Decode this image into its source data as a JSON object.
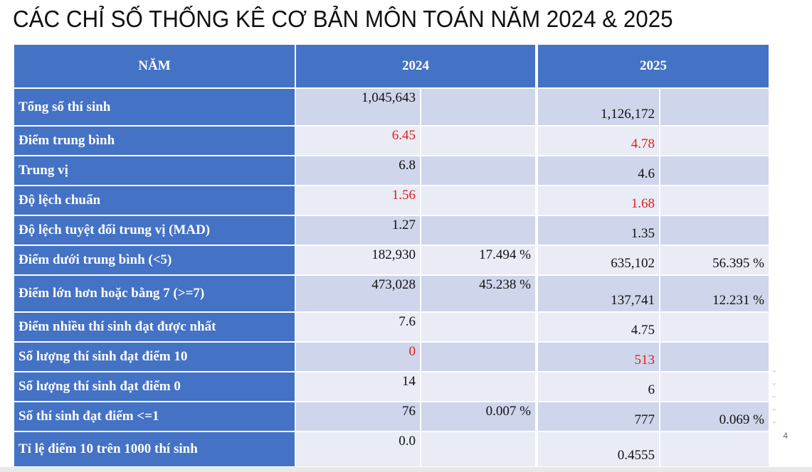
{
  "title": "CÁC CHỈ SỐ THỐNG KÊ CƠ BẢN MÔN TOÁN NĂM 2024 & 2025",
  "header": {
    "col0": "NĂM",
    "col1": "2024",
    "col2": "2025"
  },
  "rows": [
    {
      "label": "Tổng số thí sinh",
      "v2024": "1,045,643",
      "p2024": "",
      "v2025": "1,126,172",
      "p2025": "",
      "red": false
    },
    {
      "label": "Điểm trung bình",
      "v2024": "6.45",
      "p2024": "",
      "v2025": "4.78",
      "p2025": "",
      "red": true
    },
    {
      "label": "Trung vị",
      "v2024": "6.8",
      "p2024": "",
      "v2025": "4.6",
      "p2025": "",
      "red": false
    },
    {
      "label": "Độ lệch chuẩn",
      "v2024": "1.56",
      "p2024": "",
      "v2025": "1.68",
      "p2025": "",
      "red": true
    },
    {
      "label": "Độ lệch tuyệt đối trung vị (MAD)",
      "v2024": "1.27",
      "p2024": "",
      "v2025": "1.35",
      "p2025": "",
      "red": false
    },
    {
      "label": "Điểm dưới trung bình (<5)",
      "v2024": "182,930",
      "p2024": "17.494 %",
      "v2025": "635,102",
      "p2025": "56.395 %",
      "red": false
    },
    {
      "label": "Điểm lớn hơn hoặc bằng 7 (>=7)",
      "v2024": "473,028",
      "p2024": "45.238 %",
      "v2025": "137,741",
      "p2025": "12.231 %",
      "red": false
    },
    {
      "label": "Điểm nhiều thí sinh đạt được nhất",
      "v2024": "7.6",
      "p2024": "",
      "v2025": "4.75",
      "p2025": "",
      "red": false
    },
    {
      "label": "Số lượng thí sinh đạt điểm 10",
      "v2024": "0",
      "p2024": "",
      "v2025": "513",
      "p2025": "",
      "red": true
    },
    {
      "label": "Số lượng thí sinh đạt điểm 0",
      "v2024": "14",
      "p2024": "",
      "v2025": "6",
      "p2025": "",
      "red": false
    },
    {
      "label": "Số thí sinh đạt điểm <=1",
      "v2024": "76",
      "p2024": "0.007 %",
      "v2025": "777",
      "p2025": "0.069 %",
      "red": false
    },
    {
      "label": "Tỉ lệ điểm 10 trên 1000 thí sinh",
      "v2024": "0.0",
      "p2024": "",
      "v2025": "0.4555",
      "p2025": "",
      "red": false
    }
  ],
  "page_number": "4",
  "colors": {
    "header_blue": "#4472c4",
    "shade_dark": "#cfd5ea",
    "shade_light": "#e9ebf5",
    "highlight_red": "#e0201c"
  }
}
